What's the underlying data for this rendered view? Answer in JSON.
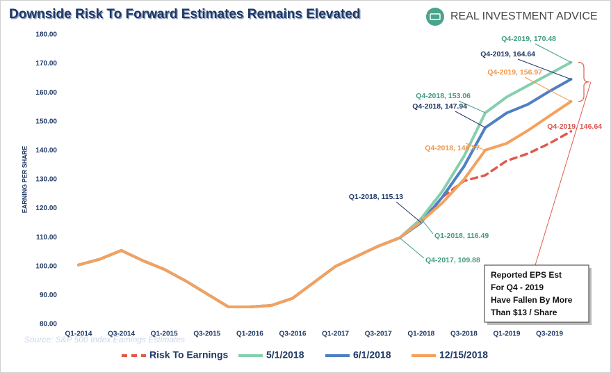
{
  "chart_data": {
    "type": "line",
    "title": "Downside Risk To Forward Estimates Remains Elevated",
    "logo": "REAL INVESTMENT ADVICE",
    "y_label": "EARNING PER SHARE",
    "source": "Source: S&P 500 Index Earnings Estimates",
    "categories": [
      "Q1-2014",
      null,
      "Q3-2014",
      null,
      "Q1-2015",
      null,
      "Q3-2015",
      null,
      "Q1-2016",
      null,
      "Q3-2016",
      null,
      "Q1-2017",
      null,
      "Q3-2017",
      null,
      "Q1-2018",
      null,
      "Q3-2018",
      null,
      "Q1-2019",
      null,
      "Q3-2019",
      null
    ],
    "ylim": [
      80,
      180
    ],
    "yticks": [
      {
        "value": 80,
        "label": "80.00"
      },
      {
        "value": 90,
        "label": "90.00"
      },
      {
        "value": 100,
        "label": "100.00"
      },
      {
        "value": 110,
        "label": "110.00"
      },
      {
        "value": 120,
        "label": "120.00"
      },
      {
        "value": 130,
        "label": "130.00"
      },
      {
        "value": 140,
        "label": "140.00"
      },
      {
        "value": 150,
        "label": "150.00"
      },
      {
        "value": 160,
        "label": "160.00"
      },
      {
        "value": 170,
        "label": "170.00"
      },
      {
        "value": 180,
        "label": "180.00"
      }
    ],
    "grid": false,
    "legend": "bottom",
    "series": [
      {
        "name": "Risk To Earnings",
        "color": "#e05a4c",
        "dashed": true,
        "values": [
          null,
          null,
          null,
          null,
          null,
          null,
          null,
          null,
          null,
          null,
          null,
          null,
          null,
          null,
          null,
          null,
          115.5,
          124,
          129.5,
          131.5,
          136.5,
          139,
          142.5,
          146.64
        ]
      },
      {
        "name": "5/1/2018",
        "color": "#86cfae",
        "dashed": false,
        "values": [
          100.5,
          102.5,
          105.5,
          102,
          99,
          95,
          90.5,
          86,
          86,
          86.5,
          89,
          94.5,
          100,
          103.5,
          107,
          109.88,
          116.49,
          126,
          138,
          153.06,
          158.5,
          162.5,
          166.5,
          170.48
        ]
      },
      {
        "name": "6/1/2018",
        "color": "#4f7fc4",
        "dashed": false,
        "values": [
          100.5,
          102.5,
          105.5,
          102,
          99,
          95,
          90.5,
          86,
          86,
          86.5,
          89,
          94.5,
          100,
          103.5,
          107,
          109.88,
          115.13,
          124,
          134.5,
          147.94,
          153,
          156,
          160.5,
          164.64
        ]
      },
      {
        "name": "12/15/2018",
        "color": "#f4a15d",
        "dashed": false,
        "values": [
          100.5,
          102.5,
          105.5,
          102,
          99,
          95,
          90.5,
          86,
          86,
          86.5,
          89,
          94.5,
          100,
          103.5,
          107,
          109.88,
          115.5,
          122,
          130,
          140.17,
          142.5,
          147,
          152,
          156.97
        ]
      }
    ],
    "annotations": [
      {
        "text": "Q4-2019,  170.48",
        "color": "#3f9c80"
      },
      {
        "text": "Q4-2019,  164.64",
        "color": "#1f3864"
      },
      {
        "text": "Q4-2019,  156.97",
        "color": "#f0954a"
      },
      {
        "text": "Q4-2018,  153.06",
        "color": "#3f9c80"
      },
      {
        "text": "Q4-2018,  147.94",
        "color": "#1f3864"
      },
      {
        "text": "Q4-2018,  140.17",
        "color": "#f0954a"
      },
      {
        "text": "Q4-2019,  146.64",
        "color": "#d9534f"
      },
      {
        "text": "Q1-2018,  115.13",
        "color": "#1f3864"
      },
      {
        "text": "Q1-2018,  116.49",
        "color": "#3f9c80"
      },
      {
        "text": "Q4-2017,  109.88",
        "color": "#3f9c80"
      }
    ],
    "callout": [
      "Reported EPS Est",
      "For Q4 - 2019",
      "Have Fallen By More",
      "Than $13 / Share"
    ]
  }
}
